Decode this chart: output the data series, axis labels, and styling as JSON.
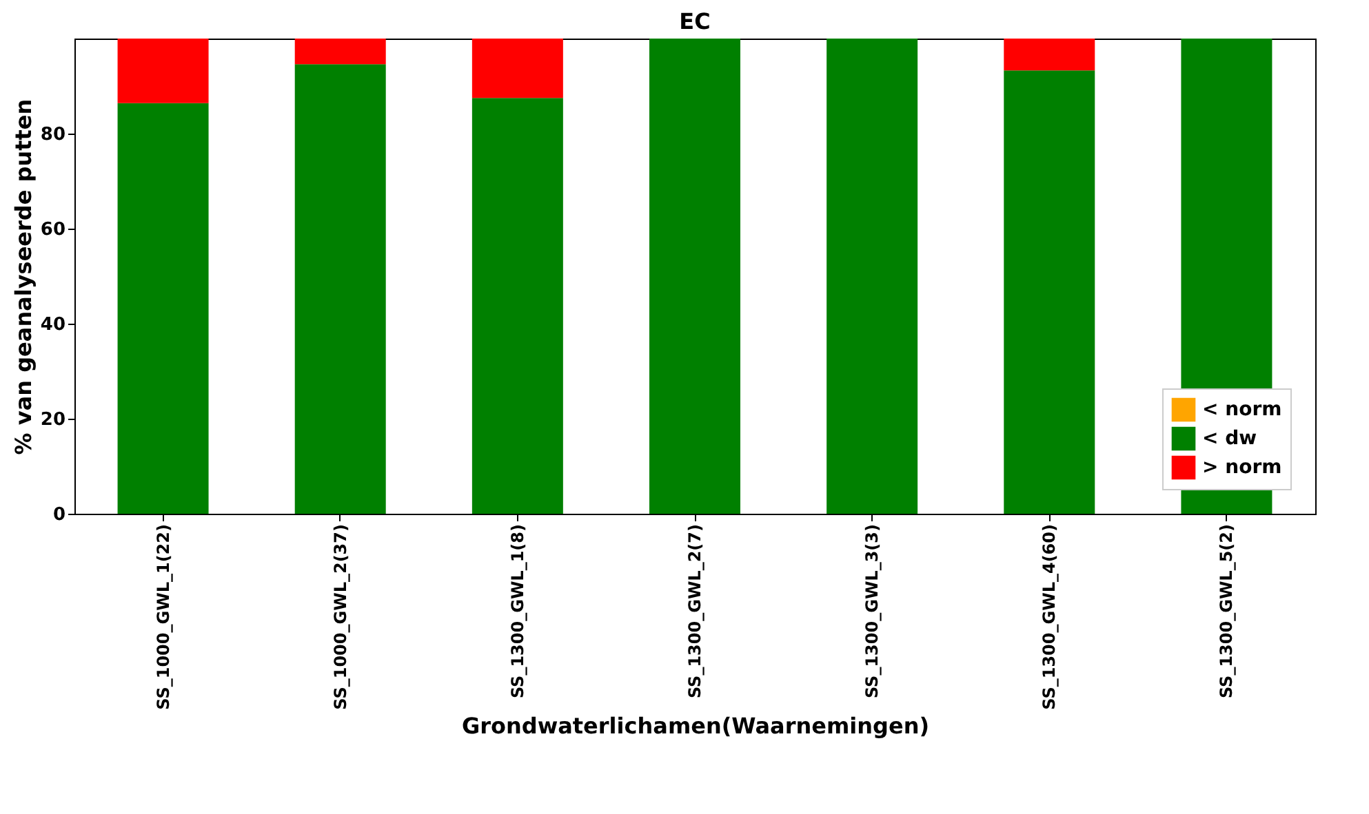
{
  "chart_data": {
    "type": "bar",
    "title": "EC",
    "xlabel": "Grondwaterlichamen(Waarnemingen)",
    "ylabel": "% van geanalyseerde putten",
    "categories": [
      "SS_1000_GWL_1(22)",
      "SS_1000_GWL_2(37)",
      "SS_1300_GWL_1(8)",
      "SS_1300_GWL_2(7)",
      "SS_1300_GWL_3(3)",
      "SS_1300_GWL_4(60)",
      "SS_1300_GWL_5(2)"
    ],
    "series": [
      {
        "name": "< norm",
        "color": "#ffa500",
        "values": [
          0,
          0,
          0,
          0,
          0,
          0,
          0
        ]
      },
      {
        "name": "< dw",
        "color": "#008000",
        "values": [
          86.4,
          94.6,
          87.5,
          100,
          100,
          93.3,
          100
        ]
      },
      {
        "name": "> norm",
        "color": "#ff0000",
        "values": [
          13.6,
          5.4,
          12.5,
          0,
          0,
          6.7,
          0
        ]
      }
    ],
    "stacked": true,
    "ylim": [
      0,
      100
    ],
    "yticks": [
      0,
      20,
      40,
      60,
      80
    ],
    "grid": false,
    "legend": "bottom right"
  }
}
